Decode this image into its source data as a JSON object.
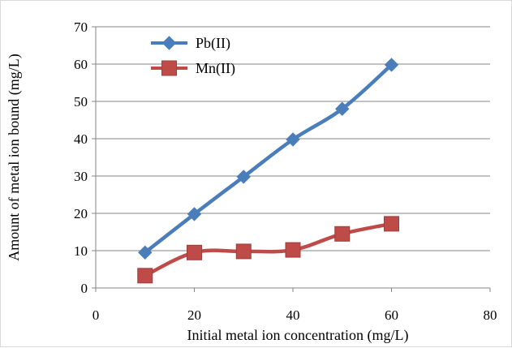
{
  "chart_data": {
    "type": "line",
    "xlabel": "Initial metal ion concentration (mg/L)",
    "ylabel": "Amount of metal ion bound (mg/L)",
    "xlim": [
      0,
      80
    ],
    "ylim": [
      0,
      70
    ],
    "x_ticks": [
      0,
      20,
      40,
      60,
      80
    ],
    "y_ticks": [
      0,
      10,
      20,
      30,
      40,
      50,
      60,
      70
    ],
    "grid": "horizontal",
    "legend_position": "top-left",
    "x": [
      10,
      20,
      30,
      40,
      50,
      60
    ],
    "series": [
      {
        "name": "Pb(II)",
        "values": [
          9.5,
          19.8,
          29.8,
          39.8,
          48.0,
          59.8
        ],
        "color": "#4a7ebb",
        "marker": "diamond"
      },
      {
        "name": "Mn(II)",
        "values": [
          3.3,
          9.5,
          9.8,
          10.2,
          14.5,
          17.2
        ],
        "color": "#be4b48",
        "marker": "square"
      }
    ]
  }
}
